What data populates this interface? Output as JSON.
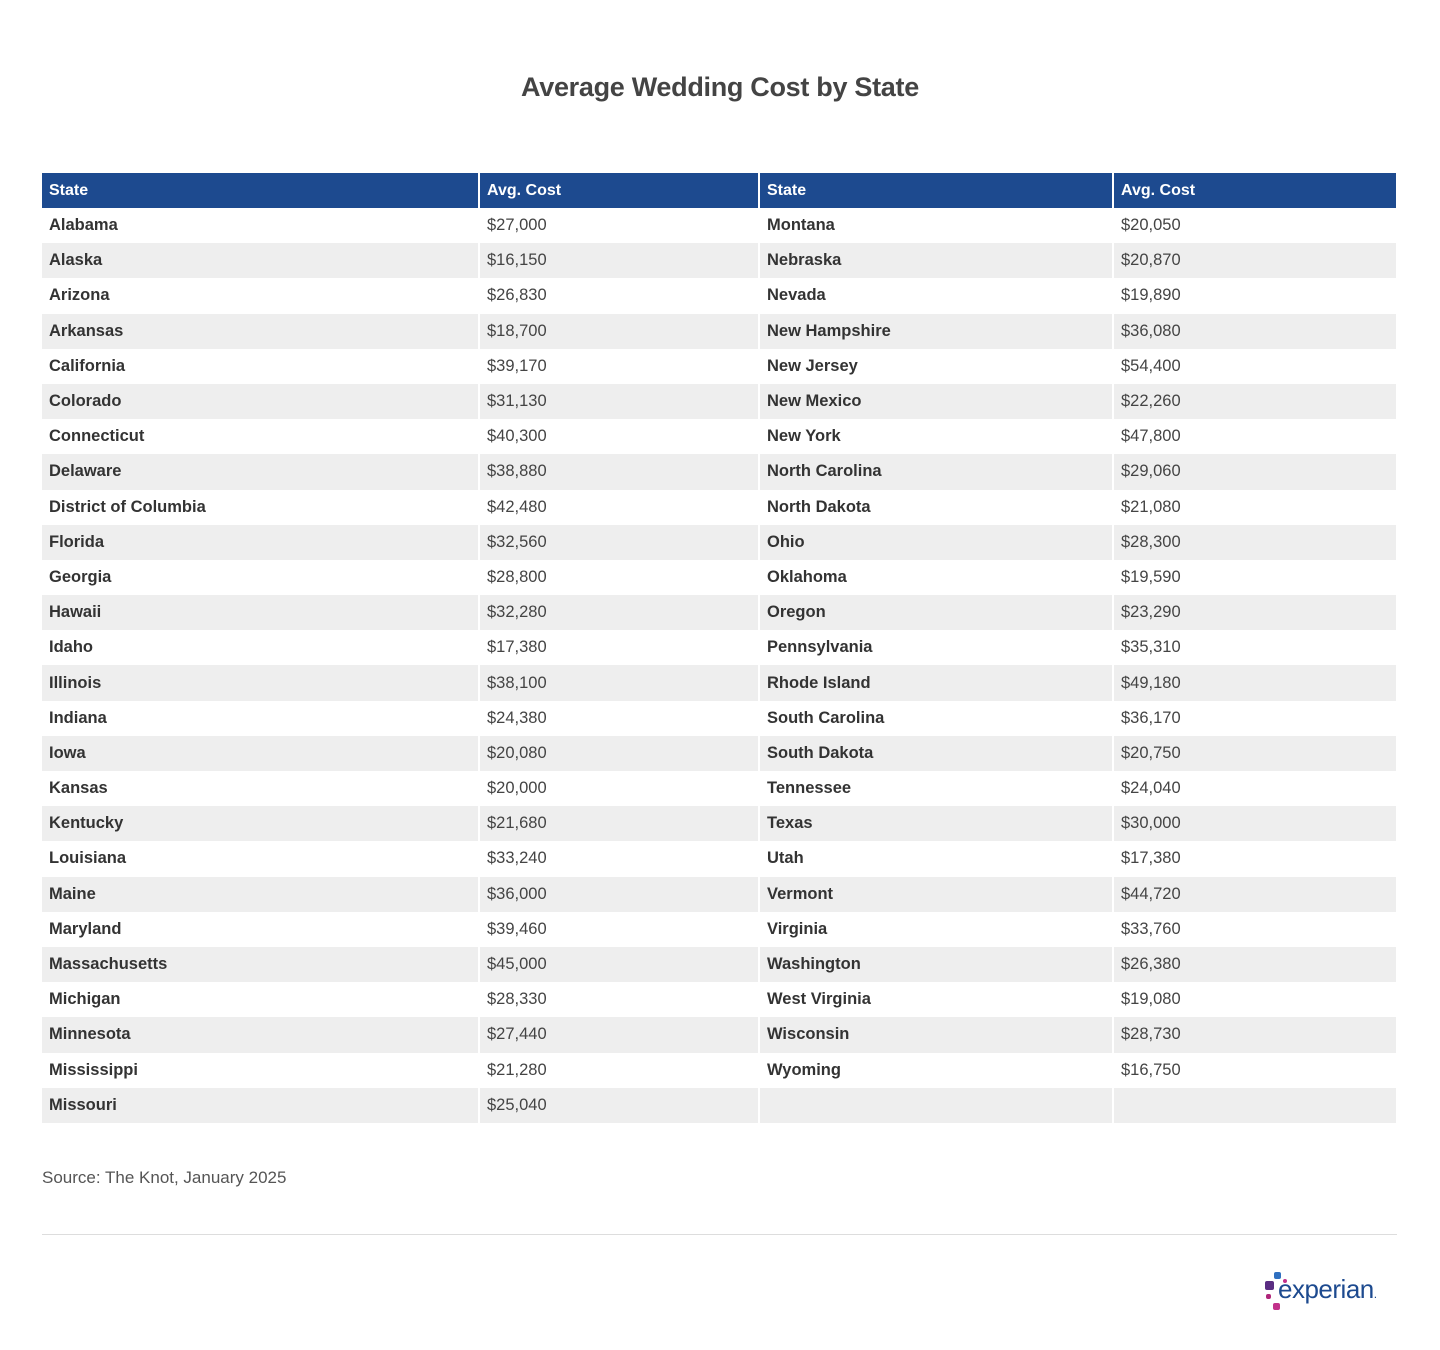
{
  "chart_data": {
    "type": "table",
    "title": "Average Wedding Cost by State",
    "headers": [
      "State",
      "Avg. Cost",
      "State",
      "Avg. Cost"
    ],
    "rows": [
      [
        "Alabama",
        "$27,000",
        "Montana",
        "$20,050"
      ],
      [
        "Alaska",
        "$16,150",
        "Nebraska",
        "$20,870"
      ],
      [
        "Arizona",
        "$26,830",
        "Nevada",
        "$19,890"
      ],
      [
        "Arkansas",
        "$18,700",
        "New Hampshire",
        "$36,080"
      ],
      [
        "California",
        "$39,170",
        "New Jersey",
        "$54,400"
      ],
      [
        "Colorado",
        "$31,130",
        "New Mexico",
        "$22,260"
      ],
      [
        "Connecticut",
        "$40,300",
        "New York",
        "$47,800"
      ],
      [
        "Delaware",
        "$38,880",
        "North Carolina",
        "$29,060"
      ],
      [
        "District of Columbia",
        "$42,480",
        "North Dakota",
        "$21,080"
      ],
      [
        "Florida",
        "$32,560",
        "Ohio",
        "$28,300"
      ],
      [
        "Georgia",
        "$28,800",
        "Oklahoma",
        "$19,590"
      ],
      [
        "Hawaii",
        "$32,280",
        "Oregon",
        "$23,290"
      ],
      [
        "Idaho",
        "$17,380",
        "Pennsylvania",
        "$35,310"
      ],
      [
        "Illinois",
        "$38,100",
        "Rhode Island",
        "$49,180"
      ],
      [
        "Indiana",
        "$24,380",
        "South Carolina",
        "$36,170"
      ],
      [
        "Iowa",
        "$20,080",
        "South Dakota",
        "$20,750"
      ],
      [
        "Kansas",
        "$20,000",
        "Tennessee",
        "$24,040"
      ],
      [
        "Kentucky",
        "$21,680",
        "Texas",
        "$30,000"
      ],
      [
        "Louisiana",
        "$33,240",
        "Utah",
        "$17,380"
      ],
      [
        "Maine",
        "$36,000",
        "Vermont",
        "$44,720"
      ],
      [
        "Maryland",
        "$39,460",
        "Virginia",
        "$33,760"
      ],
      [
        "Massachusetts",
        "$45,000",
        "Washington",
        "$26,380"
      ],
      [
        "Michigan",
        "$28,330",
        "West Virginia",
        "$19,080"
      ],
      [
        "Minnesota",
        "$27,440",
        "Wisconsin",
        "$28,730"
      ],
      [
        "Mississippi",
        "$21,280",
        "Wyoming",
        "$16,750"
      ],
      [
        "Missouri",
        "$25,040",
        "",
        ""
      ]
    ],
    "header_color": "#1d4a8f",
    "stripe_color": "#eeeeee"
  },
  "footer": {
    "source": "Source: The Knot, January 2025",
    "logo_text": "experian."
  }
}
